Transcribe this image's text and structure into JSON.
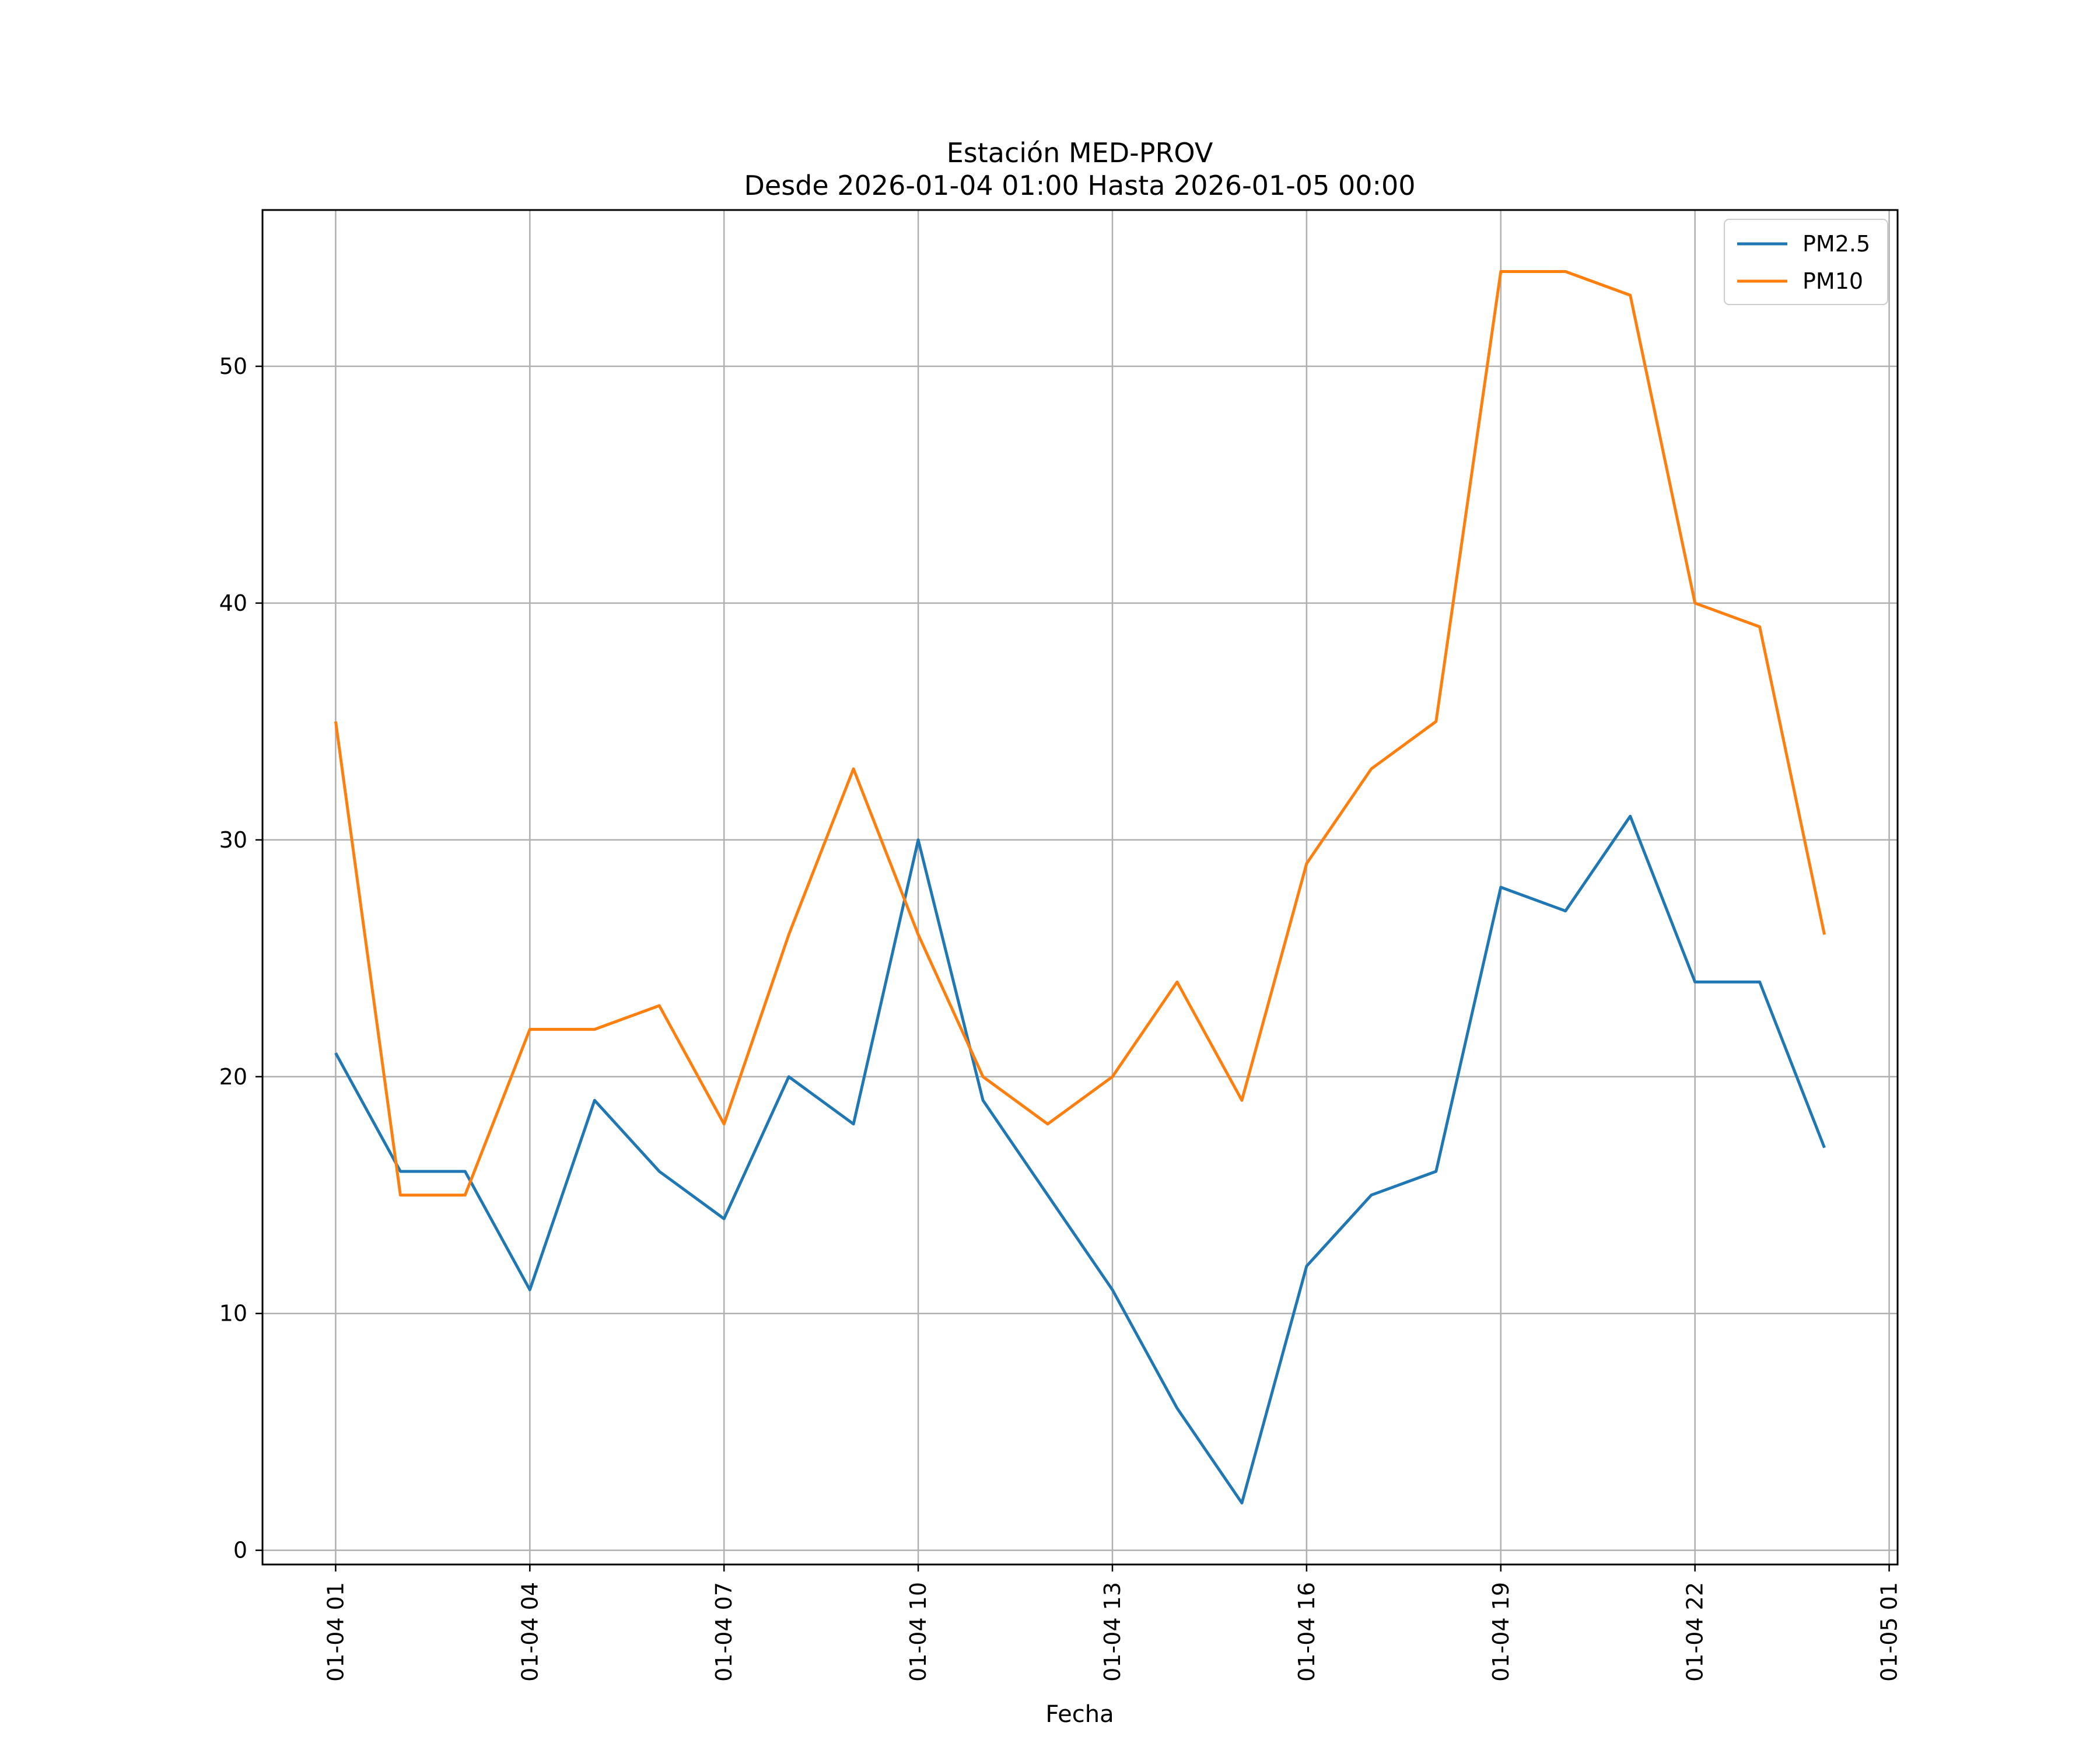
{
  "chart_data": {
    "type": "line",
    "title": "Estación MED-PROV",
    "subtitle": "Desde 2026-01-04 01:00 Hasta 2026-01-05 00:00",
    "xlabel": "Fecha",
    "ylabel": "",
    "grid": true,
    "legend_position": "top-right",
    "x_hours": [
      1,
      2,
      3,
      4,
      5,
      6,
      7,
      8,
      9,
      10,
      11,
      12,
      13,
      14,
      15,
      16,
      17,
      18,
      19,
      20,
      21,
      22,
      23,
      24
    ],
    "xlim_hours": [
      -0.13,
      25.13
    ],
    "x_ticks": [
      {
        "hour": 1,
        "label": "01-04 01"
      },
      {
        "hour": 4,
        "label": "01-04 04"
      },
      {
        "hour": 7,
        "label": "01-04 07"
      },
      {
        "hour": 10,
        "label": "01-04 10"
      },
      {
        "hour": 13,
        "label": "01-04 13"
      },
      {
        "hour": 16,
        "label": "01-04 16"
      },
      {
        "hour": 19,
        "label": "01-04 19"
      },
      {
        "hour": 22,
        "label": "01-04 22"
      },
      {
        "hour": 25,
        "label": "01-05 01"
      }
    ],
    "y_ticks": [
      {
        "value": 0,
        "label": "0"
      },
      {
        "value": 10,
        "label": "10"
      },
      {
        "value": 20,
        "label": "20"
      },
      {
        "value": 30,
        "label": "30"
      },
      {
        "value": 40,
        "label": "40"
      },
      {
        "value": 50,
        "label": "50"
      }
    ],
    "ylim": [
      -0.6,
      56.6
    ],
    "series": [
      {
        "name": "PM2.5",
        "color": "#1f77b4",
        "values": [
          21,
          16,
          16,
          11,
          19,
          16,
          14,
          20,
          18,
          30,
          19,
          15,
          11,
          6,
          2,
          12,
          15,
          16,
          28,
          27,
          31,
          24,
          24,
          17
        ]
      },
      {
        "name": "PM10",
        "color": "#ff7f0e",
        "values": [
          35,
          15,
          15,
          22,
          22,
          23,
          18,
          26,
          33,
          26,
          20,
          18,
          20,
          24,
          19,
          29,
          33,
          35,
          54,
          54,
          53,
          40,
          39,
          26
        ]
      }
    ]
  }
}
